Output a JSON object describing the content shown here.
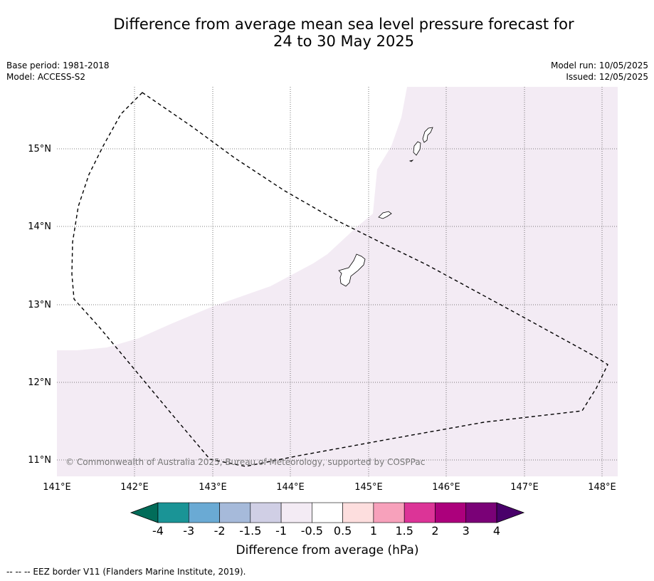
{
  "title": {
    "line1": "Difference from average mean sea level pressure forecast for",
    "line2": "24 to 30 May 2025"
  },
  "meta": {
    "base_period": "Base period: 1981-2018",
    "model": "Model: ACCESS-S2",
    "model_run": "Model run: 10/05/2025",
    "issued": "Issued: 12/05/2025"
  },
  "map": {
    "lon_labels": [
      "141°E",
      "142°E",
      "143°E",
      "144°E",
      "145°E",
      "146°E",
      "147°E",
      "148°E"
    ],
    "lat_labels": [
      "15°N",
      "14°N",
      "13°N",
      "12°N",
      "11°N"
    ],
    "anomaly_fill": "#f3ebf4",
    "copyright": "© Commonwealth of Australia 2025, Bureau of Meteorology, supported by COSPPac"
  },
  "colorbar": {
    "tick_labels": [
      "-4",
      "-3",
      "-2",
      "-1.5",
      "-1",
      "-0.5",
      "0.5",
      "1",
      "1.5",
      "2",
      "3",
      "4"
    ],
    "colors": [
      "#1a9496",
      "#6aaad4",
      "#a6bada",
      "#d0cfe5",
      "#f3ebf4",
      "#ffffff",
      "#fddede",
      "#f7a1bb",
      "#dc3497",
      "#ac007c",
      "#7a0177"
    ],
    "under_color": "#016c59",
    "over_color": "#49006a",
    "label": "Difference from average (hPa)"
  },
  "footer": "--  --  -- EEZ border V11 (Flanders Marine Institute, 2019)."
}
